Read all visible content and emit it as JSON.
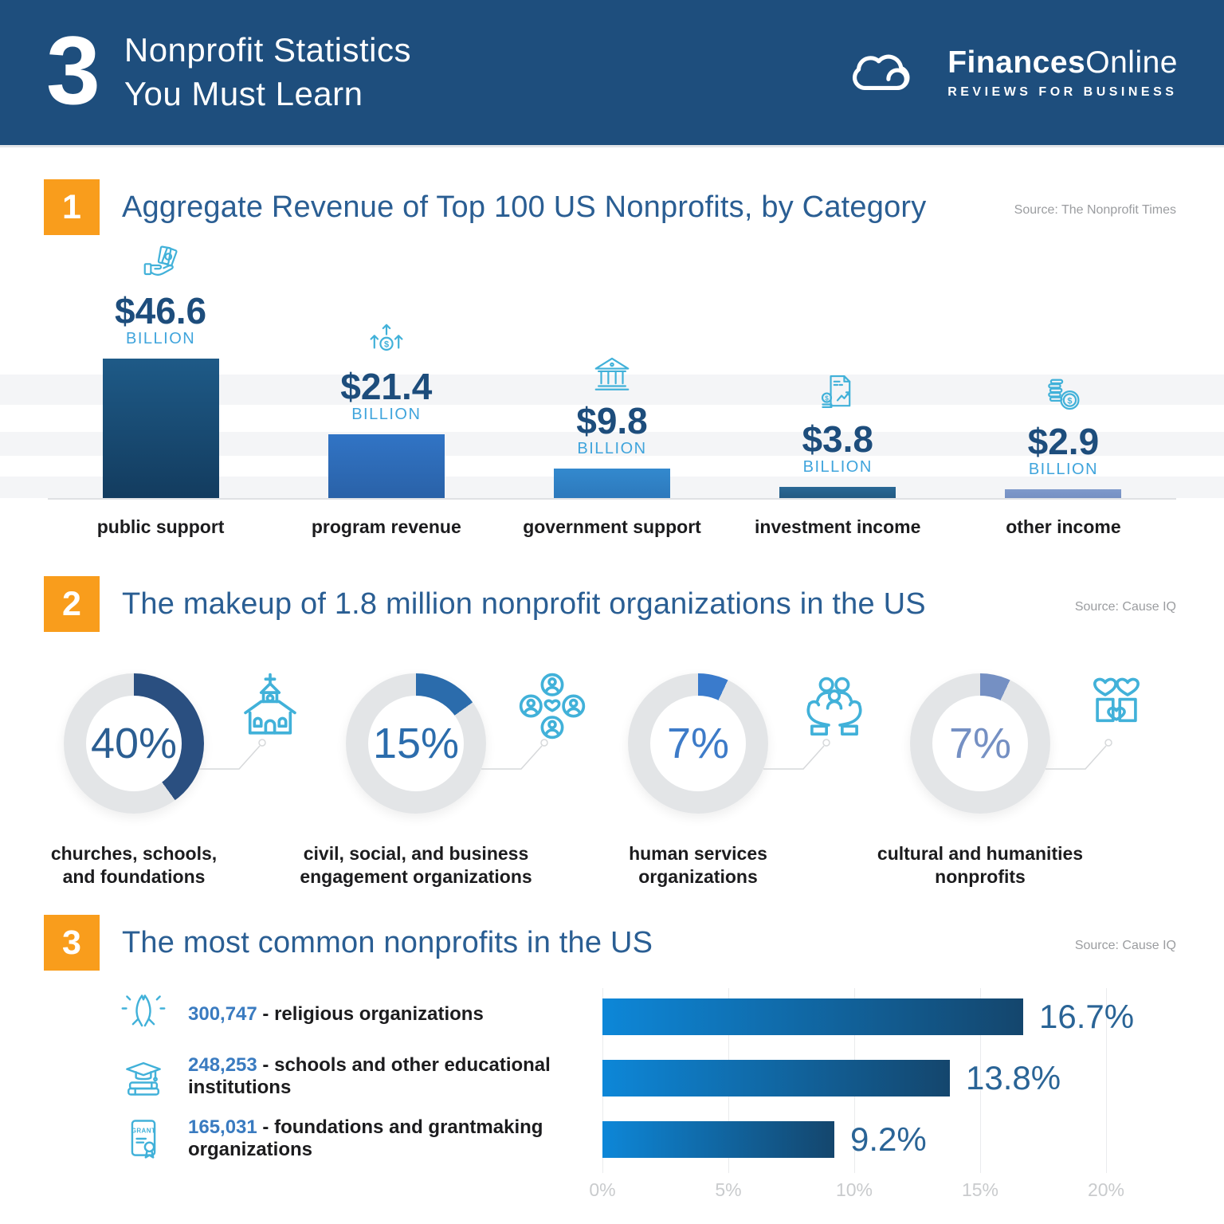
{
  "header": {
    "big_number": "3",
    "title_line1": "Nonprofit Statistics",
    "title_line2": "You Must Learn",
    "brand_bold": "Finances",
    "brand_light": "Online",
    "brand_tagline": "REVIEWS FOR BUSINESS"
  },
  "sections": [
    {
      "number": "1",
      "title": "Aggregate Revenue of Top 100 US Nonprofits, by Category",
      "source": "Source: The Nonprofit Times"
    },
    {
      "number": "2",
      "title": "The makeup of 1.8 million nonprofit organizations in the US",
      "source": "Source: Cause IQ"
    },
    {
      "number": "3",
      "title": "The most common nonprofits in the US",
      "source": "Source: Cause IQ"
    }
  ],
  "chart_data": [
    {
      "type": "bar",
      "title": "Aggregate Revenue of Top 100 US Nonprofits, by Category",
      "unit": "BILLION",
      "categories": [
        "public support",
        "program revenue",
        "government support",
        "investment income",
        "other income"
      ],
      "values": [
        46.6,
        21.4,
        9.8,
        3.8,
        2.9
      ],
      "value_labels": [
        "$46.6",
        "$21.4",
        "$9.8",
        "$3.8",
        "$2.9"
      ],
      "icons": [
        "cash-in-hand-icon",
        "growth-arrows-icon",
        "bank-building-icon",
        "investment-report-icon",
        "coins-icon"
      ],
      "bar_colors": [
        [
          "#1e5a87",
          "#133c5f"
        ],
        [
          "#3174c5",
          "#2a62a8"
        ],
        [
          "#3389ce",
          "#2d79bc"
        ],
        [
          "#2a6996",
          "#235a83"
        ],
        [
          "#7e99cb",
          "#7590c3"
        ]
      ],
      "ylim": [
        0,
        50
      ],
      "legend": "none",
      "grid": "subtle horizontal bands"
    },
    {
      "type": "donut-set",
      "title": "The makeup of 1.8 million nonprofit organizations in the US",
      "track_color": "#e3e5e7",
      "items": [
        {
          "pct": 40,
          "value_label": "40%",
          "label_lines": [
            "churches, schools,",
            "and foundations"
          ],
          "color": "#2a4f80",
          "text_color": "#2b5e92",
          "icon": "church-icon"
        },
        {
          "pct": 15,
          "value_label": "15%",
          "label_lines": [
            "civil, social, and business",
            "engagement organizations"
          ],
          "color": "#2b6cac",
          "text_color": "#2b6cac",
          "icon": "community-people-icon"
        },
        {
          "pct": 7,
          "value_label": "7%",
          "label_lines": [
            "human services",
            "organizations"
          ],
          "color": "#3a7bcc",
          "text_color": "#3d7bc8",
          "icon": "family-care-icon"
        },
        {
          "pct": 7,
          "value_label": "7%",
          "label_lines": [
            "cultural and humanities",
            "nonprofits"
          ],
          "color": "#7590c3",
          "text_color": "#7590c3",
          "icon": "giving-hearts-icon"
        }
      ]
    },
    {
      "type": "bar-horizontal",
      "title": "The most common nonprofits in the US",
      "separator": " - ",
      "rows": [
        {
          "count": "300,747",
          "label": "religious organizations",
          "value": 16.7,
          "value_label": "16.7%",
          "icon": "praying-hands-icon"
        },
        {
          "count": "248,253",
          "label": "schools and other educational institutions",
          "value": 13.8,
          "value_label": "13.8%",
          "icon": "education-books-icon"
        },
        {
          "count": "165,031",
          "label": "foundations and grantmaking organizations",
          "value": 9.2,
          "value_label": "9.2%",
          "icon": "grant-certificate-icon"
        }
      ],
      "x_ticks": [
        "0%",
        "5%",
        "10%",
        "15%",
        "20%"
      ],
      "xlim": [
        0,
        20
      ],
      "bar_gradient": [
        "#0d87d8",
        "#14466d"
      ]
    }
  ],
  "colors": {
    "header_bg": "#1e4e7d",
    "accent_orange": "#f99d1c",
    "title_blue": "#2a5e93",
    "value_navy": "#1d4d7c",
    "unit_blue": "#3fa4dc",
    "icon_cyan": "#41b1d9",
    "source_gray": "#9b9da0",
    "axis_gray": "#c9cbcd",
    "count_blue": "#3a7bc0",
    "hbar_value_blue": "#2a6496"
  }
}
